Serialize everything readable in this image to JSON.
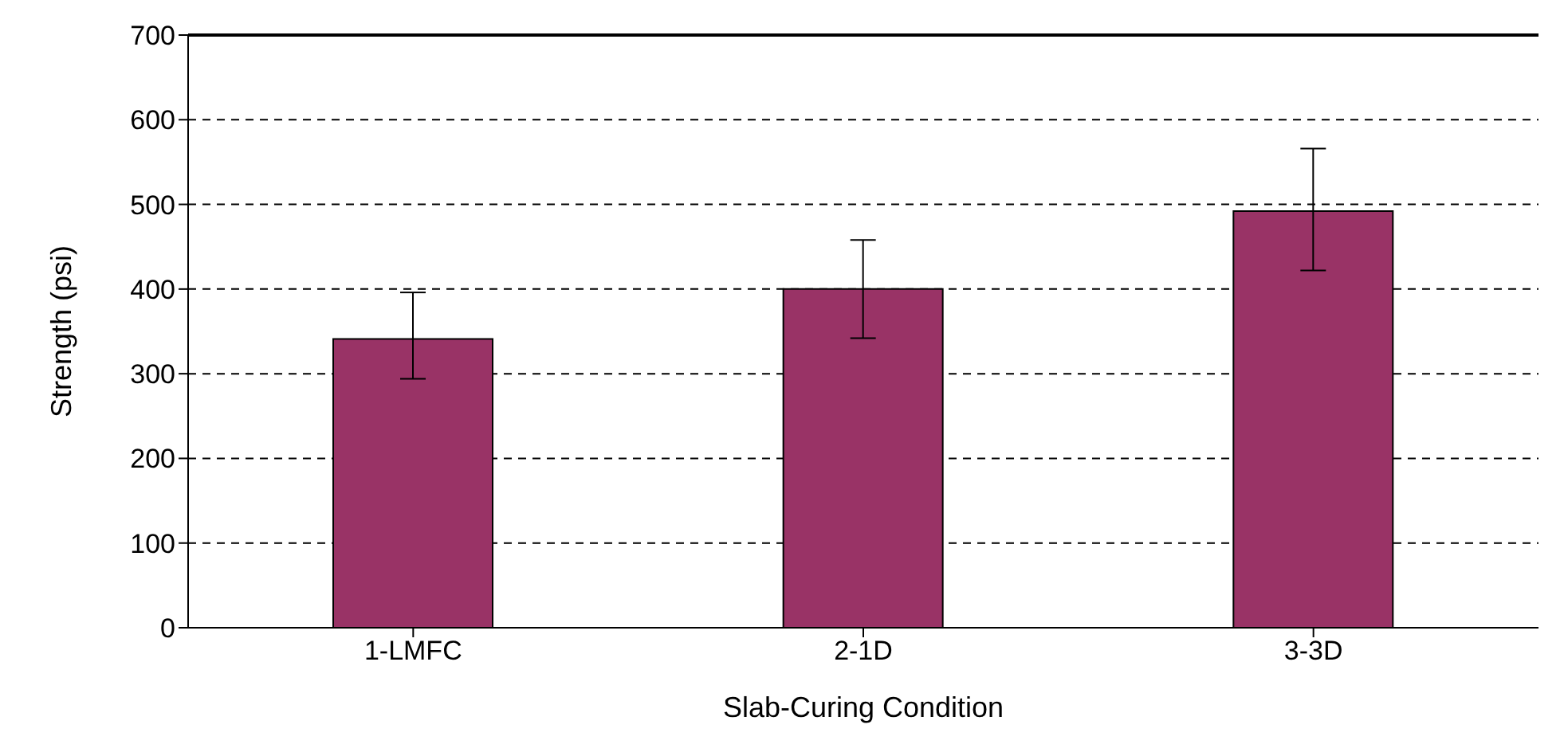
{
  "chart_data": {
    "type": "bar",
    "xlabel": "Slab-Curing Condition",
    "ylabel": "Strength (psi)",
    "categories": [
      "1-LMFC",
      "2-1D",
      "3-3D"
    ],
    "values": [
      341,
      400,
      492
    ],
    "errors": [
      [
        294,
        396
      ],
      [
        342,
        458
      ],
      [
        422,
        566
      ]
    ],
    "color": "#993366",
    "ylim": [
      0,
      700
    ],
    "yticks": [
      0,
      100,
      200,
      300,
      400,
      500,
      600,
      700
    ],
    "grid": "y"
  }
}
